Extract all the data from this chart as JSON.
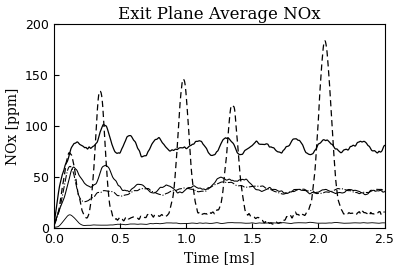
{
  "title": "Exit Plane Average NOx",
  "xlabel": "Time [ms]",
  "ylabel": "NOx [ppm]",
  "xlim": [
    0,
    2.5
  ],
  "ylim": [
    0,
    200
  ],
  "xticks": [
    0,
    0.5,
    1.0,
    1.5,
    2.0,
    2.5
  ],
  "yticks": [
    0,
    50,
    100,
    150,
    200
  ],
  "figsize": [
    4.0,
    2.71
  ],
  "dpi": 100,
  "background": "#ffffff",
  "title_fontsize": 12,
  "axis_fontsize": 10,
  "tick_fontsize": 9
}
